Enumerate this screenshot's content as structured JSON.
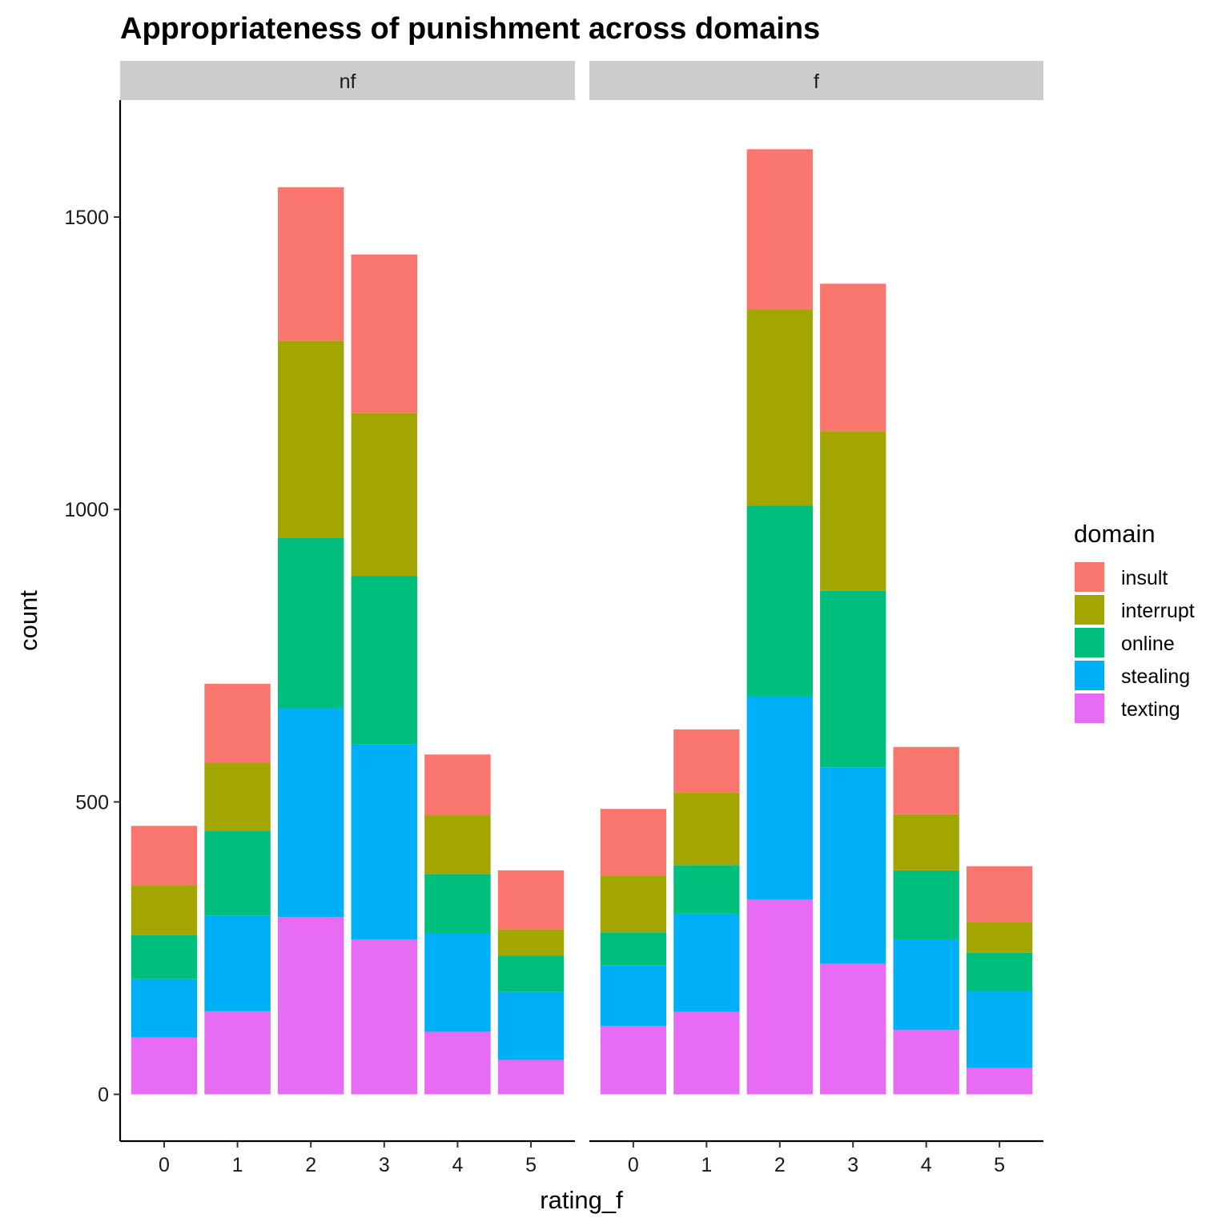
{
  "chart_data": {
    "type": "bar",
    "stacked": true,
    "title": "Appropriateness of punishment across domains",
    "xlabel": "rating_f",
    "ylabel": "count",
    "ylim": [
      -80,
      1700
    ],
    "yticks": [
      0,
      500,
      1000,
      1500
    ],
    "categories": [
      "0",
      "1",
      "2",
      "3",
      "4",
      "5"
    ],
    "legend": {
      "title": "domain",
      "position": "right"
    },
    "grid": false,
    "colors": {
      "insult": "#F8766D",
      "interrupt": "#A3A500",
      "online": "#00BF7D",
      "stealing": "#00B0F6",
      "texting": "#E76BF3"
    },
    "stack_order": [
      "texting",
      "stealing",
      "online",
      "interrupt",
      "insult"
    ],
    "legend_order": [
      "insult",
      "interrupt",
      "online",
      "stealing",
      "texting"
    ],
    "panels": [
      {
        "label": "nf",
        "series": [
          {
            "name": "texting",
            "values": [
              97,
              142,
              303,
              265,
              107,
              59
            ]
          },
          {
            "name": "stealing",
            "values": [
              100,
              163,
              357,
              334,
              169,
              116
            ]
          },
          {
            "name": "online",
            "values": [
              75,
              146,
              291,
              287,
              100,
              62
            ]
          },
          {
            "name": "interrupt",
            "values": [
              86,
              116,
              337,
              279,
              102,
              45
            ]
          },
          {
            "name": "insult",
            "values": [
              101,
              135,
              263,
              271,
              103,
              101
            ]
          }
        ]
      },
      {
        "label": "f",
        "series": [
          {
            "name": "texting",
            "values": [
              117,
              141,
              333,
              223,
              110,
              45
            ]
          },
          {
            "name": "stealing",
            "values": [
              104,
              168,
              347,
              336,
              155,
              131
            ]
          },
          {
            "name": "online",
            "values": [
              56,
              83,
              327,
              302,
              118,
              66
            ]
          },
          {
            "name": "interrupt",
            "values": [
              97,
              124,
              335,
              273,
              96,
              53
            ]
          },
          {
            "name": "insult",
            "values": [
              114,
              108,
              274,
              252,
              115,
              95
            ]
          }
        ]
      }
    ]
  }
}
